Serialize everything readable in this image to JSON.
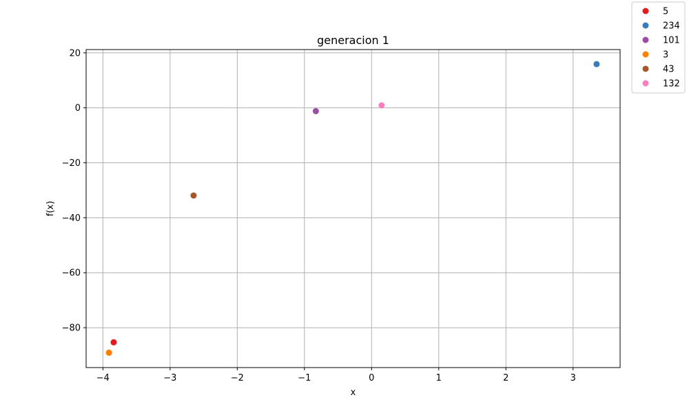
{
  "chart_data": {
    "type": "scatter",
    "title": "generacion 1",
    "xlabel": "x",
    "ylabel": "f(x)",
    "xlim": [
      -4.25,
      3.7
    ],
    "ylim": [
      -94.5,
      21.2
    ],
    "xticks": [
      -4,
      -3,
      -2,
      -1,
      0,
      1,
      2,
      3
    ],
    "yticks": [
      20,
      0,
      -20,
      -40,
      -60,
      -80
    ],
    "grid": true,
    "legend_position": "outside-top-right",
    "series": [
      {
        "name": "5",
        "color": "#e41a1c",
        "x": [
          -3.84
        ],
        "y": [
          -85.3
        ]
      },
      {
        "name": "234",
        "color": "#377eb8",
        "x": [
          3.35
        ],
        "y": [
          15.9
        ]
      },
      {
        "name": "101",
        "color": "#984ea3",
        "x": [
          -0.83
        ],
        "y": [
          -1.2
        ]
      },
      {
        "name": "3",
        "color": "#ff7f00",
        "x": [
          -3.91
        ],
        "y": [
          -89.1
        ]
      },
      {
        "name": "43",
        "color": "#a65628",
        "x": [
          -2.65
        ],
        "y": [
          -31.9
        ]
      },
      {
        "name": "132",
        "color": "#f781bf",
        "x": [
          0.15
        ],
        "y": [
          0.9
        ]
      }
    ]
  }
}
